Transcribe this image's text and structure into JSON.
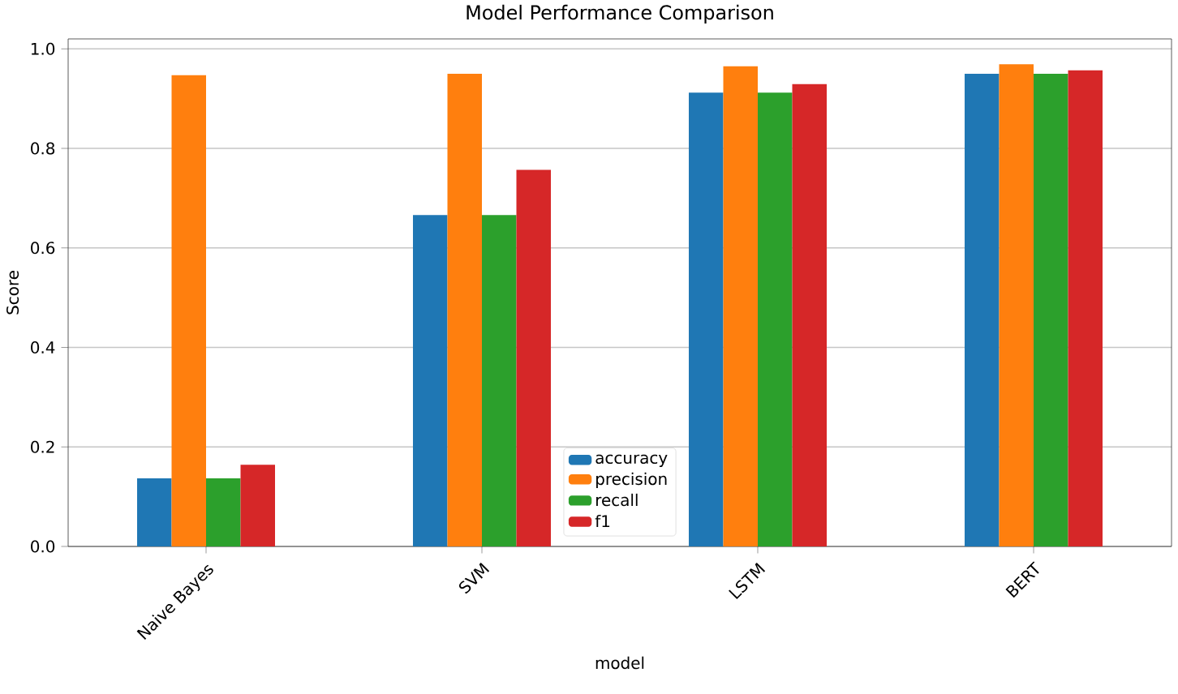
{
  "chart_data": {
    "type": "bar",
    "title": "Model Performance Comparison",
    "xlabel": "model",
    "ylabel": "Score",
    "categories": [
      "Naive Bayes",
      "SVM",
      "LSTM",
      "BERT"
    ],
    "series": [
      {
        "name": "accuracy",
        "color": "#1f77b4",
        "values": [
          0.137,
          0.666,
          0.912,
          0.95
        ]
      },
      {
        "name": "precision",
        "color": "#ff7f0e",
        "values": [
          0.947,
          0.95,
          0.965,
          0.969
        ]
      },
      {
        "name": "recall",
        "color": "#2ca02c",
        "values": [
          0.137,
          0.666,
          0.912,
          0.95
        ]
      },
      {
        "name": "f1",
        "color": "#d62728",
        "values": [
          0.164,
          0.757,
          0.929,
          0.957
        ]
      }
    ],
    "ylim": [
      0,
      1.02
    ],
    "yticks": [
      {
        "value": 0,
        "label": "0.0"
      },
      0.2,
      0.4,
      0.6,
      0.8,
      {
        "value": 1,
        "label": "1.0"
      }
    ],
    "grid": "y",
    "legend": "bottom"
  }
}
